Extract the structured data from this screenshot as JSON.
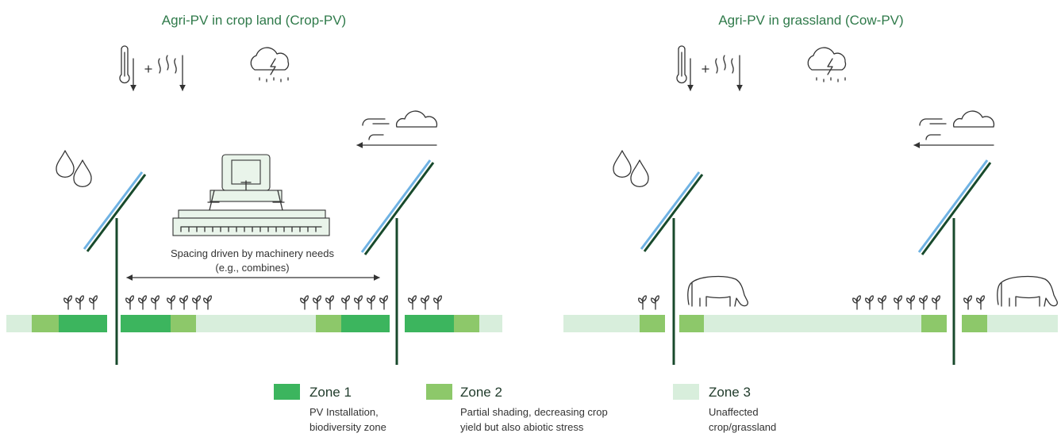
{
  "panels": [
    {
      "title": "Agri-PV in crop land (Crop-PV)"
    },
    {
      "title": "Agri-PV in grassland (Cow-PV)"
    }
  ],
  "spacing_label": [
    "Spacing driven by machinery needs",
    "(e.g., combines)"
  ],
  "legend": [
    {
      "name": "Zone 1",
      "description": [
        "PV Installation,",
        "biodiversity zone"
      ]
    },
    {
      "name": "Zone 2",
      "description": [
        "Partial shading, decreasing crop",
        "yield but also abiotic stress"
      ]
    },
    {
      "name": "Zone 3",
      "description": [
        "Unaffected",
        "crop/grassland"
      ]
    }
  ]
}
